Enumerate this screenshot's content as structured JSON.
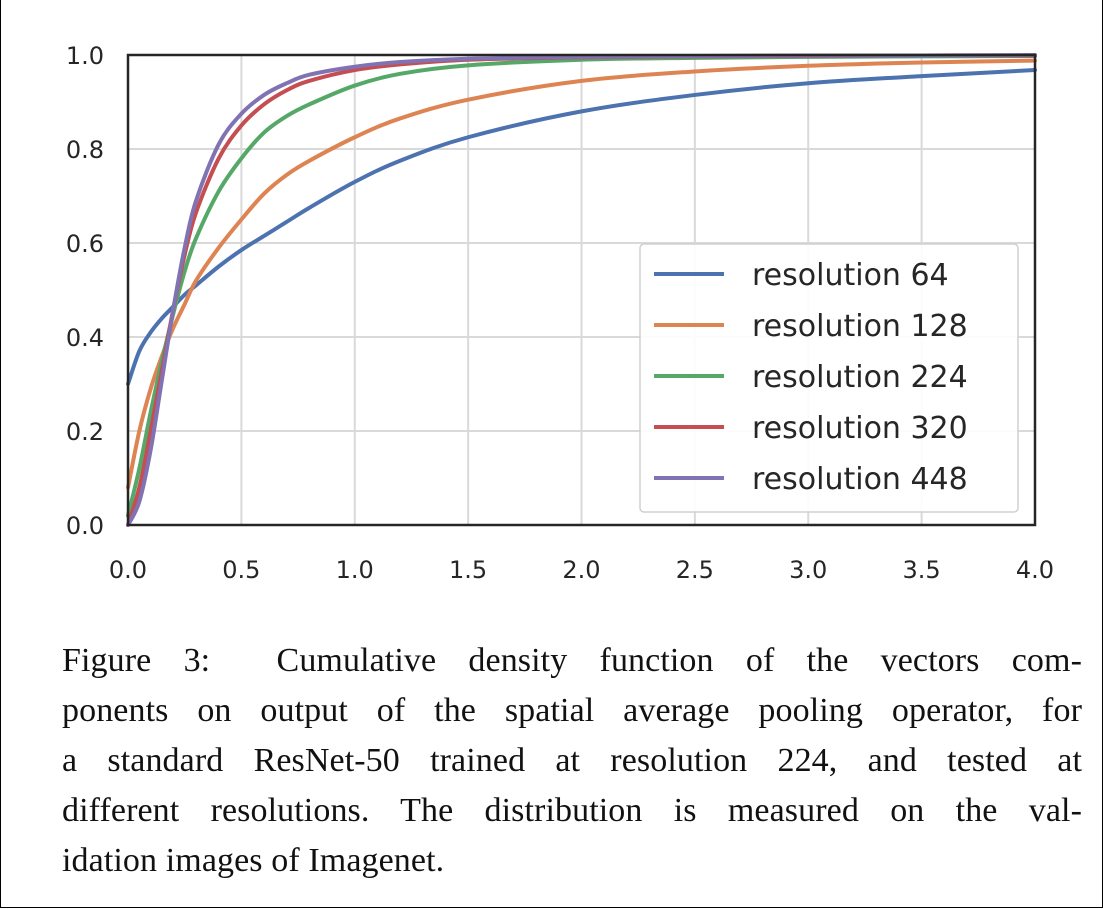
{
  "caption": "Figure 3:  Cumulative density function of the vectors com-ponents on output of the spatial average pooling operator, for a standard ResNet-50 trained at resolution 224, and tested at different resolutions. The distribution is measured on the val-idation images of Imagenet.",
  "caption_lines": [
    "Figure 3:  Cumulative density function of the vectors com-",
    "ponents on output of the spatial average pooling operator, for",
    "a standard ResNet-50 trained at resolution 224, and tested at",
    "different resolutions. The distribution is measured on the val-",
    "idation images of Imagenet."
  ],
  "chart_data": {
    "type": "line",
    "title": "",
    "xlabel": "",
    "ylabel": "",
    "xlim": [
      0.0,
      4.0
    ],
    "ylim": [
      0.0,
      1.0
    ],
    "xticks": [
      "0.0",
      "0.5",
      "1.0",
      "1.5",
      "2.0",
      "2.5",
      "3.0",
      "3.5",
      "4.0"
    ],
    "yticks": [
      "0.0",
      "0.2",
      "0.4",
      "0.6",
      "0.8",
      "1.0"
    ],
    "grid": true,
    "legend_position": "center-right",
    "x": [
      0,
      0.05,
      0.1,
      0.15,
      0.2,
      0.25,
      0.3,
      0.4,
      0.5,
      0.6,
      0.7,
      0.8,
      1.0,
      1.2,
      1.5,
      2.0,
      2.5,
      3.0,
      3.5,
      4.0
    ],
    "series": [
      {
        "name": "resolution 64",
        "color": "#4c72b0",
        "values": [
          0.3,
          0.37,
          0.41,
          0.44,
          0.465,
          0.49,
          0.51,
          0.55,
          0.585,
          0.615,
          0.645,
          0.675,
          0.73,
          0.775,
          0.825,
          0.88,
          0.915,
          0.94,
          0.955,
          0.968
        ]
      },
      {
        "name": "resolution 128",
        "color": "#dd8452",
        "values": [
          0.08,
          0.2,
          0.29,
          0.36,
          0.42,
          0.47,
          0.52,
          0.59,
          0.65,
          0.705,
          0.745,
          0.775,
          0.825,
          0.865,
          0.905,
          0.945,
          0.965,
          0.977,
          0.984,
          0.988
        ]
      },
      {
        "name": "resolution 224",
        "color": "#55a868",
        "values": [
          0.02,
          0.12,
          0.24,
          0.35,
          0.45,
          0.54,
          0.61,
          0.71,
          0.78,
          0.835,
          0.87,
          0.895,
          0.935,
          0.96,
          0.978,
          0.99,
          0.994,
          0.996,
          0.997,
          0.998
        ]
      },
      {
        "name": "resolution 320",
        "color": "#c44e52",
        "values": [
          0.0,
          0.08,
          0.2,
          0.33,
          0.46,
          0.575,
          0.665,
          0.78,
          0.85,
          0.895,
          0.925,
          0.945,
          0.968,
          0.98,
          0.99,
          0.995,
          0.997,
          0.998,
          0.999,
          0.999
        ]
      },
      {
        "name": "resolution 448",
        "color": "#8172b3",
        "values": [
          0.0,
          0.05,
          0.16,
          0.31,
          0.46,
          0.59,
          0.69,
          0.81,
          0.875,
          0.915,
          0.94,
          0.958,
          0.975,
          0.985,
          0.992,
          0.996,
          0.998,
          0.999,
          0.999,
          1.0
        ]
      }
    ]
  }
}
